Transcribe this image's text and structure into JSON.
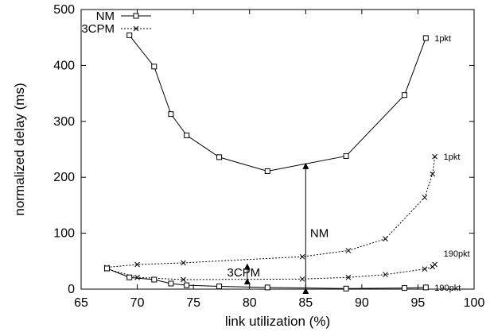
{
  "chart_data": {
    "type": "line",
    "xlabel": "link utilization (%)",
    "ylabel": "normalized delay (ms)",
    "xlim": [
      65,
      100
    ],
    "ylim": [
      0,
      500
    ],
    "xticks": [
      65,
      70,
      75,
      80,
      85,
      90,
      95,
      100
    ],
    "yticks": [
      0,
      100,
      200,
      300,
      400,
      500
    ],
    "legend_position": "top-left",
    "series": [
      {
        "name": "NM",
        "legend": true,
        "marker": "square",
        "line_style": "solid",
        "label": "1pkt",
        "x": [
          69.3,
          71.5,
          73.0,
          74.4,
          77.3,
          81.6,
          88.6,
          93.8,
          95.7
        ],
        "y": [
          454,
          398,
          313,
          275,
          236,
          211,
          238,
          347,
          449
        ]
      },
      {
        "name": "3CPM",
        "legend": true,
        "marker": "cross",
        "line_style": "dotted",
        "label": "1pkt",
        "x": [
          67.3,
          70.0,
          74.1,
          84.7,
          88.8,
          92.1,
          95.6,
          96.3,
          96.5
        ],
        "y": [
          39,
          44,
          47,
          58,
          69,
          90,
          164,
          206,
          237
        ]
      },
      {
        "name": "",
        "legend": false,
        "marker": "cross",
        "line_style": "dotted",
        "label": "190pkt",
        "x": [
          96.5,
          96.3,
          95.6,
          92.1,
          88.8,
          84.7,
          74.1,
          70.0,
          67.3
        ],
        "y": [
          44,
          40,
          36,
          26,
          21,
          18,
          17,
          21,
          36
        ]
      },
      {
        "name": "",
        "legend": false,
        "marker": "square",
        "line_style": "solid",
        "label": "190pkt",
        "x": [
          67.3,
          69.3,
          71.5,
          73.0,
          74.4,
          77.3,
          81.6,
          88.6,
          93.8,
          95.7
        ],
        "y": [
          37,
          21,
          17,
          10,
          7,
          5,
          3,
          1,
          2,
          3
        ]
      }
    ],
    "annotations": [
      {
        "text": "NM",
        "x": 85,
        "y_from": 0,
        "y_to": 226,
        "label_x": 85.4,
        "label_y": 100
      },
      {
        "text": "3CPM",
        "x": 79.8,
        "y_from": 17,
        "y_to": 46,
        "label_x": 78.0,
        "label_y": 30
      }
    ]
  }
}
